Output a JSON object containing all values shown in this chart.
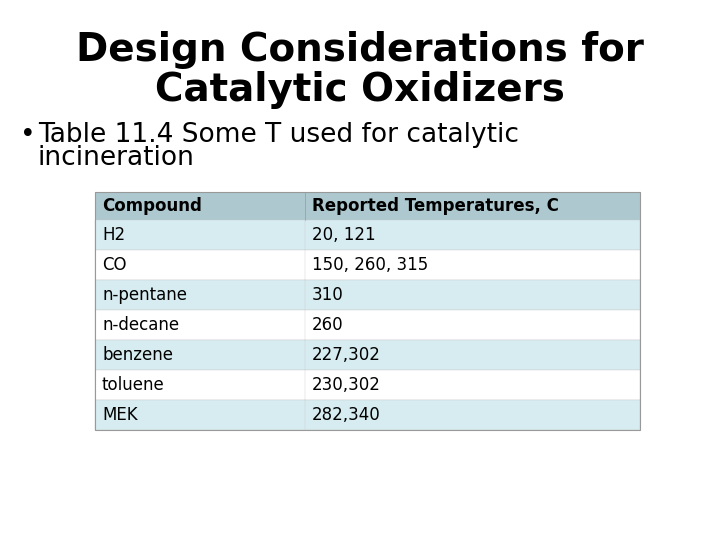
{
  "title_line1": "Design Considerations for",
  "title_line2": "Catalytic Oxidizers",
  "bullet_text_line1": "Table 11.4 Some T used for catalytic",
  "bullet_text_line2": "incineration",
  "table_headers": [
    "Compound",
    "Reported Temperatures, C"
  ],
  "table_rows": [
    [
      "H2",
      "20, 121"
    ],
    [
      "CO",
      "150, 260, 315"
    ],
    [
      "n-pentane",
      "310"
    ],
    [
      "n-decane",
      "260"
    ],
    [
      "benzene",
      "227,302"
    ],
    [
      "toluene",
      "230,302"
    ],
    [
      "MEK",
      "282,340"
    ]
  ],
  "bg_color": "#ffffff",
  "title_color": "#000000",
  "bullet_color": "#000000",
  "header_bg": "#adc8cf",
  "row_bg_even": "#d6ecf0",
  "row_bg_odd": "#ffffff",
  "header_text_color": "#000000",
  "row_text_color": "#000000",
  "title_fontsize": 28,
  "bullet_fontsize": 19,
  "table_fontsize": 12,
  "header_fontsize": 12
}
